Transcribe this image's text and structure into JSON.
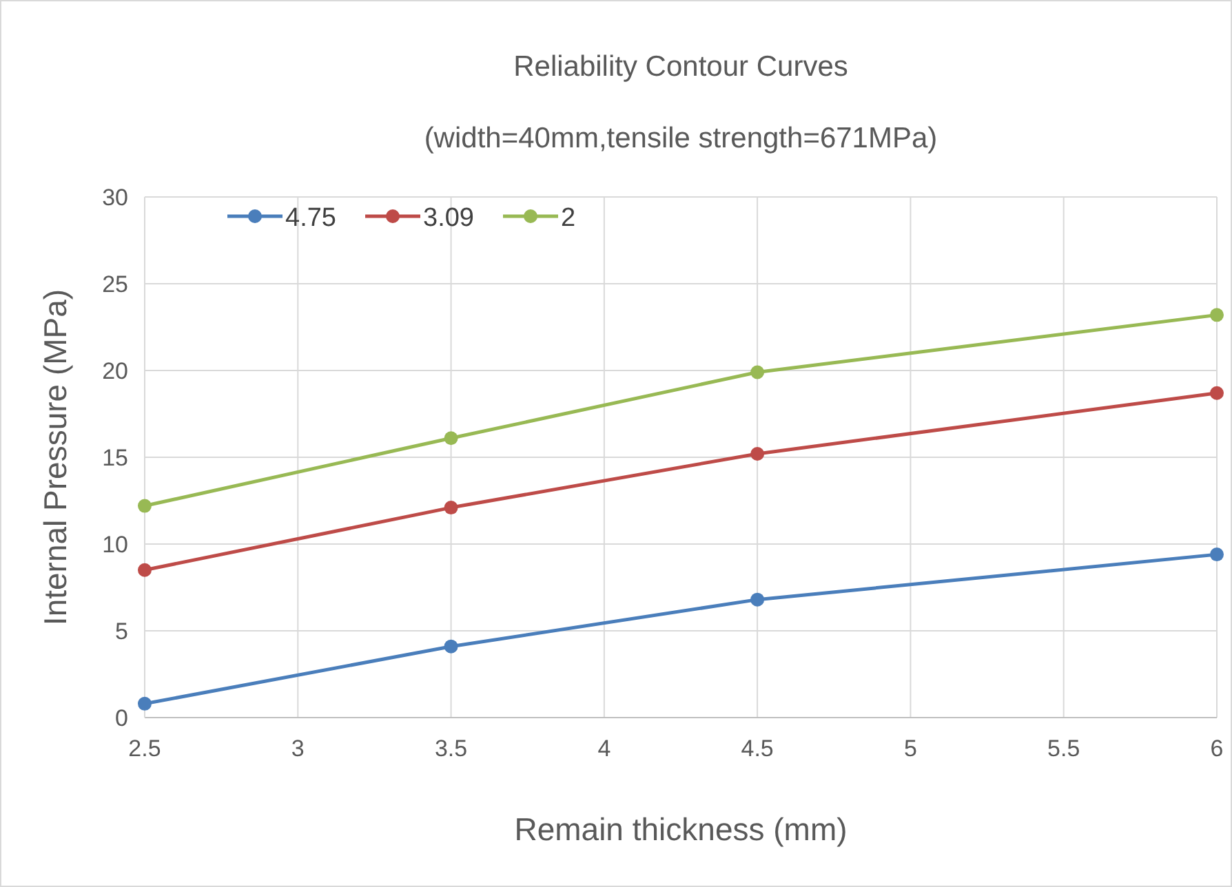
{
  "chart_data": {
    "type": "line",
    "title": "Reliability Contour Curves",
    "subtitle": "(width=40mm,tensile strength=671MPa)",
    "xlabel": "Remain thickness (mm)",
    "ylabel": "Internal Pressure (MPa)",
    "x": [
      2.5,
      3.5,
      4.5,
      6
    ],
    "series": [
      {
        "name": "4.75",
        "color": "#4a7ebb",
        "values": [
          0.8,
          4.1,
          6.8,
          9.4
        ]
      },
      {
        "name": "3.09",
        "color": "#be4b48",
        "values": [
          8.5,
          12.1,
          15.2,
          18.7
        ]
      },
      {
        "name": "2",
        "color": "#98b954",
        "values": [
          12.2,
          16.1,
          19.9,
          23.2
        ]
      }
    ],
    "xlim": [
      2.5,
      6
    ],
    "xticks": [
      2.5,
      3,
      3.5,
      4,
      4.5,
      5,
      5.5,
      6
    ],
    "ylim": [
      0,
      30
    ],
    "yticks": [
      0,
      5,
      10,
      15,
      20,
      25,
      30
    ],
    "grid": true,
    "legend": "top left",
    "marker": "circle",
    "line_style": "solid"
  }
}
